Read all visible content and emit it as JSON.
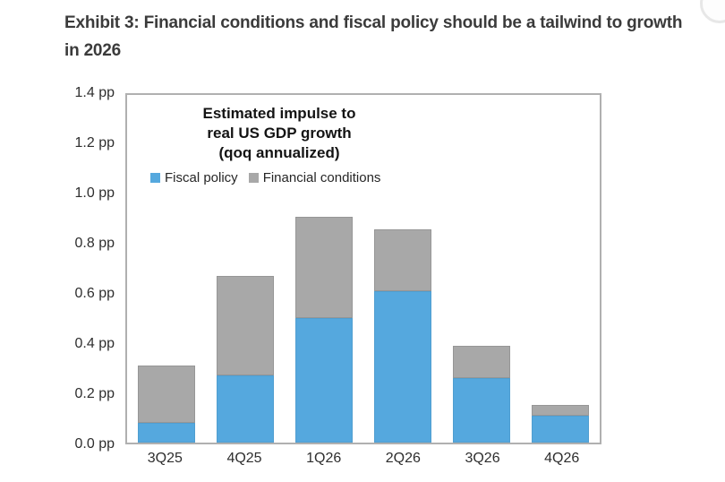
{
  "exhibit": {
    "title_line1": "Exhibit 3: Financial conditions and fiscal policy should be a tailwind to growth",
    "title_line2": "in 2026"
  },
  "chart_data": {
    "type": "bar",
    "stacked": true,
    "title": "Estimated impulse to real US GDP growth (qoq annualized)",
    "title_lines": [
      "Estimated impulse to",
      "real US GDP growth",
      "(qoq annualized)"
    ],
    "categories": [
      "3Q25",
      "4Q25",
      "1Q26",
      "2Q26",
      "3Q26",
      "4Q26"
    ],
    "series": [
      {
        "name": "Fiscal policy",
        "color": "#55a8de",
        "values": [
          0.08,
          0.27,
          0.5,
          0.61,
          0.26,
          0.11
        ]
      },
      {
        "name": "Financial conditions",
        "color": "#a8a8a8",
        "values": [
          0.23,
          0.4,
          0.41,
          0.25,
          0.13,
          0.04
        ]
      }
    ],
    "totals": [
      0.31,
      0.67,
      0.91,
      0.86,
      0.39,
      0.15
    ],
    "unit": "pp",
    "yticks": [
      "1.4 pp",
      "1.2 pp",
      "1.0 pp",
      "0.8 pp",
      "0.6 pp",
      "0.4 pp",
      "0.2 pp",
      "0.0 pp"
    ],
    "ylim": [
      0,
      1.4
    ],
    "grid": false,
    "legend_position": "inside-top-left",
    "frame_color": "#b0b0b0"
  }
}
